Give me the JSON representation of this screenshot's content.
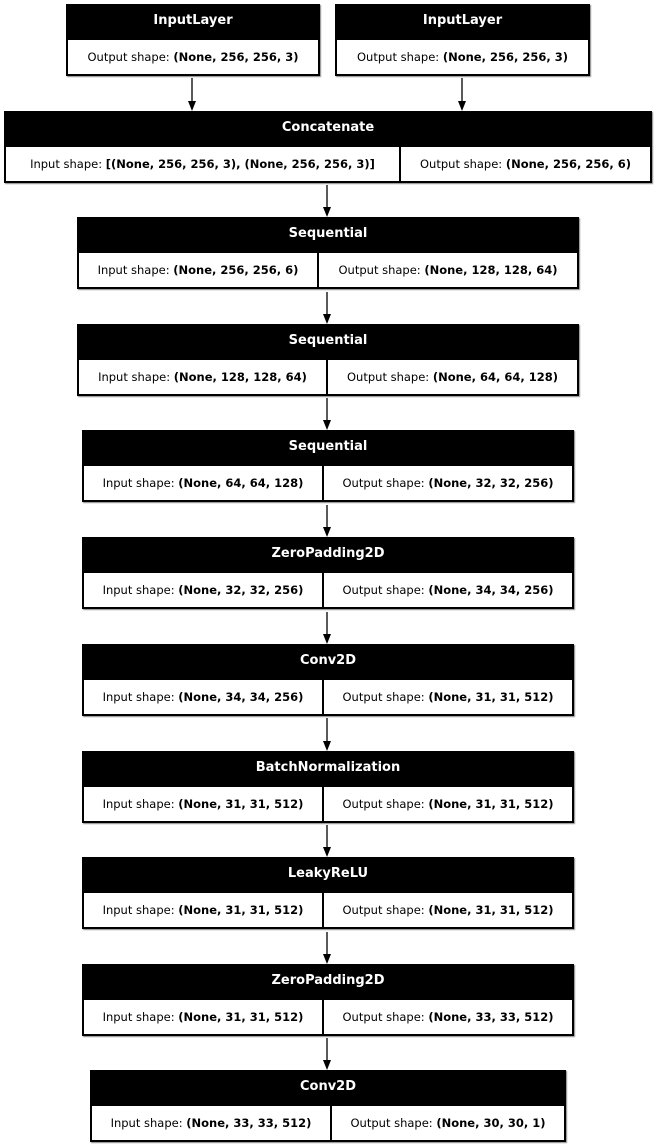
{
  "labels": {
    "input": "Input shape: ",
    "output": "Output shape: "
  },
  "layers": [
    {
      "name": "InputLayer",
      "output_shape": "(None, 256, 256, 3)"
    },
    {
      "name": "InputLayer",
      "output_shape": "(None, 256, 256, 3)"
    },
    {
      "name": "Concatenate",
      "input_shape": "[(None, 256, 256, 3), (None, 256, 256, 3)]",
      "output_shape": "(None, 256, 256, 6)"
    },
    {
      "name": "Sequential",
      "input_shape": "(None, 256, 256, 6)",
      "output_shape": "(None, 128, 128, 64)"
    },
    {
      "name": "Sequential",
      "input_shape": "(None, 128, 128, 64)",
      "output_shape": "(None, 64, 64, 128)"
    },
    {
      "name": "Sequential",
      "input_shape": "(None, 64, 64, 128)",
      "output_shape": "(None, 32, 32, 256)"
    },
    {
      "name": "ZeroPadding2D",
      "input_shape": "(None, 32, 32, 256)",
      "output_shape": "(None, 34, 34, 256)"
    },
    {
      "name": "Conv2D",
      "input_shape": "(None, 34, 34, 256)",
      "output_shape": "(None, 31, 31, 512)"
    },
    {
      "name": "BatchNormalization",
      "input_shape": "(None, 31, 31, 512)",
      "output_shape": "(None, 31, 31, 512)"
    },
    {
      "name": "LeakyReLU",
      "input_shape": "(None, 31, 31, 512)",
      "output_shape": "(None, 31, 31, 512)"
    },
    {
      "name": "ZeroPadding2D",
      "input_shape": "(None, 31, 31, 512)",
      "output_shape": "(None, 33, 33, 512)"
    },
    {
      "name": "Conv2D",
      "input_shape": "(None, 33, 33, 512)",
      "output_shape": "(None, 30, 30, 1)"
    }
  ]
}
